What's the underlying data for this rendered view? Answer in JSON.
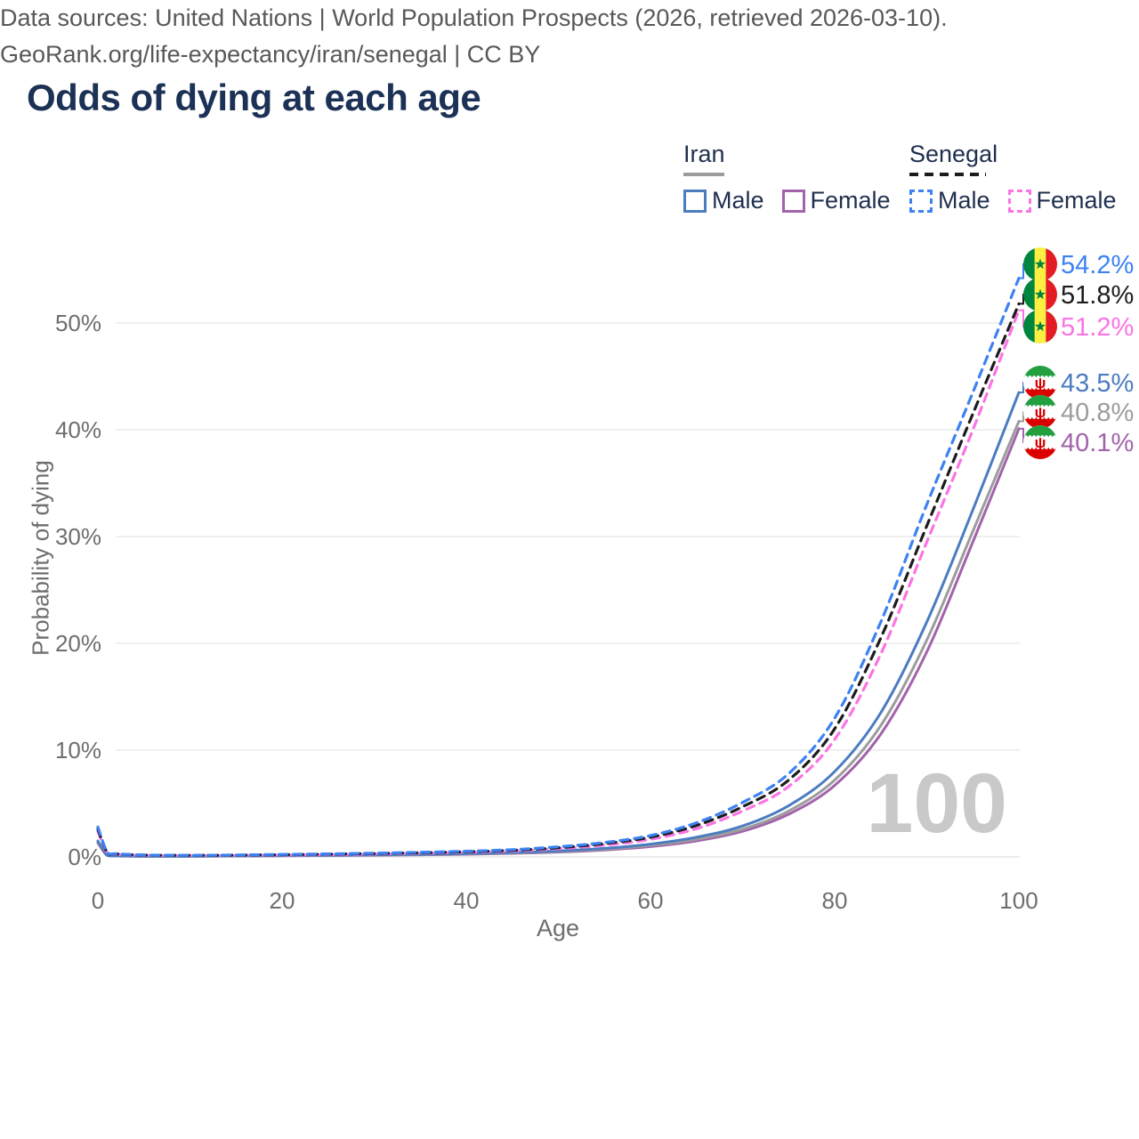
{
  "title": "Odds of dying at each age",
  "watermark": "100",
  "legend": {
    "groups": [
      {
        "country": "Iran",
        "line_style": "solid",
        "sample_color": "#9c9c9c",
        "items": [
          {
            "label": "Male",
            "series_id": "iran-male"
          },
          {
            "label": "Female",
            "series_id": "iran-female"
          }
        ]
      },
      {
        "country": "Senegal",
        "line_style": "dashed",
        "sample_color": "#1c1c1c",
        "items": [
          {
            "label": "Male",
            "series_id": "senegal-male"
          },
          {
            "label": "Female",
            "series_id": "senegal-female"
          }
        ]
      }
    ]
  },
  "footer": {
    "line1": "Data sources: United Nations | World Population Prospects (2026, retrieved 2026-03-10).",
    "line2": "GeoRank.org/life-expectancy/iran/senegal | CC BY"
  },
  "chart_data": {
    "type": "line",
    "title": "Odds of dying at each age",
    "xlabel": "Age",
    "ylabel": "Probability of dying",
    "xlim": [
      0,
      100
    ],
    "ylim": [
      0,
      56
    ],
    "grid": "horizontal",
    "legend_position": "top-right",
    "x_ticks": [
      0,
      20,
      40,
      60,
      80,
      100
    ],
    "y_ticks": [
      {
        "v": 0,
        "label": "0%"
      },
      {
        "v": 10,
        "label": "10%"
      },
      {
        "v": 20,
        "label": "20%"
      },
      {
        "v": 30,
        "label": "30%"
      },
      {
        "v": 40,
        "label": "40%"
      },
      {
        "v": 50,
        "label": "50%"
      }
    ],
    "x": [
      0,
      1,
      2,
      5,
      10,
      15,
      20,
      25,
      30,
      35,
      40,
      45,
      50,
      55,
      60,
      65,
      70,
      75,
      80,
      85,
      90,
      95,
      100
    ],
    "series": [
      {
        "id": "senegal-male",
        "name": "Senegal Male",
        "country": "Senegal",
        "sex": "Male",
        "line": "dashed",
        "color": "#3d82f2",
        "flag": "senegal",
        "end_label": "54.2%",
        "end_value": 54.2,
        "values": [
          2.8,
          0.5,
          0.3,
          0.18,
          0.15,
          0.18,
          0.23,
          0.28,
          0.35,
          0.43,
          0.53,
          0.68,
          0.95,
          1.35,
          2.0,
          3.2,
          5.1,
          7.8,
          13.0,
          22.0,
          33.0,
          43.5,
          54.2
        ]
      },
      {
        "id": "senegal-both",
        "name": "Senegal Both sexes",
        "country": "Senegal",
        "sex": "Both",
        "line": "dashed",
        "color": "#1c1c1c",
        "flag": "senegal",
        "end_label": "51.8%",
        "end_value": 51.8,
        "values": [
          2.6,
          0.46,
          0.28,
          0.17,
          0.14,
          0.16,
          0.21,
          0.26,
          0.32,
          0.39,
          0.48,
          0.62,
          0.86,
          1.25,
          1.85,
          2.95,
          4.7,
          7.2,
          12.0,
          20.5,
          31.0,
          41.5,
          51.8
        ]
      },
      {
        "id": "senegal-female",
        "name": "Senegal Female",
        "country": "Senegal",
        "sex": "Female",
        "line": "dashed",
        "color": "#fa74e4",
        "flag": "senegal",
        "end_label": "51.2%",
        "end_value": 51.2,
        "values": [
          2.4,
          0.42,
          0.26,
          0.15,
          0.13,
          0.15,
          0.18,
          0.22,
          0.28,
          0.35,
          0.43,
          0.55,
          0.77,
          1.1,
          1.65,
          2.65,
          4.3,
          6.6,
          11.0,
          19.0,
          29.5,
          40.0,
          51.2
        ]
      },
      {
        "id": "iran-male",
        "name": "Iran Male",
        "country": "Iran",
        "sex": "Male",
        "line": "solid",
        "color": "#4b7cc0",
        "flag": "iran",
        "end_label": "43.5%",
        "end_value": 43.5,
        "values": [
          1.5,
          0.16,
          0.1,
          0.07,
          0.07,
          0.1,
          0.13,
          0.16,
          0.2,
          0.25,
          0.31,
          0.41,
          0.56,
          0.8,
          1.2,
          1.85,
          2.9,
          4.8,
          8.0,
          13.5,
          22.0,
          32.5,
          43.5
        ]
      },
      {
        "id": "iran-both",
        "name": "Iran Both sexes",
        "country": "Iran",
        "sex": "Both",
        "line": "solid",
        "color": "#9c9c9c",
        "flag": "iran",
        "end_label": "40.8%",
        "end_value": 40.8,
        "values": [
          1.4,
          0.15,
          0.09,
          0.065,
          0.065,
          0.09,
          0.12,
          0.15,
          0.18,
          0.22,
          0.28,
          0.37,
          0.5,
          0.72,
          1.08,
          1.65,
          2.6,
          4.3,
          7.2,
          12.3,
          20.3,
          30.5,
          40.8
        ]
      },
      {
        "id": "iran-female",
        "name": "Iran Female",
        "country": "Iran",
        "sex": "Female",
        "line": "solid",
        "color": "#a263ab",
        "flag": "iran",
        "end_label": "40.1%",
        "end_value": 40.1,
        "values": [
          1.3,
          0.14,
          0.085,
          0.06,
          0.06,
          0.08,
          0.1,
          0.13,
          0.16,
          0.2,
          0.25,
          0.33,
          0.45,
          0.65,
          0.97,
          1.5,
          2.4,
          4.0,
          6.7,
          11.5,
          19.2,
          29.5,
          40.1
        ]
      }
    ],
    "annotation": "100"
  }
}
